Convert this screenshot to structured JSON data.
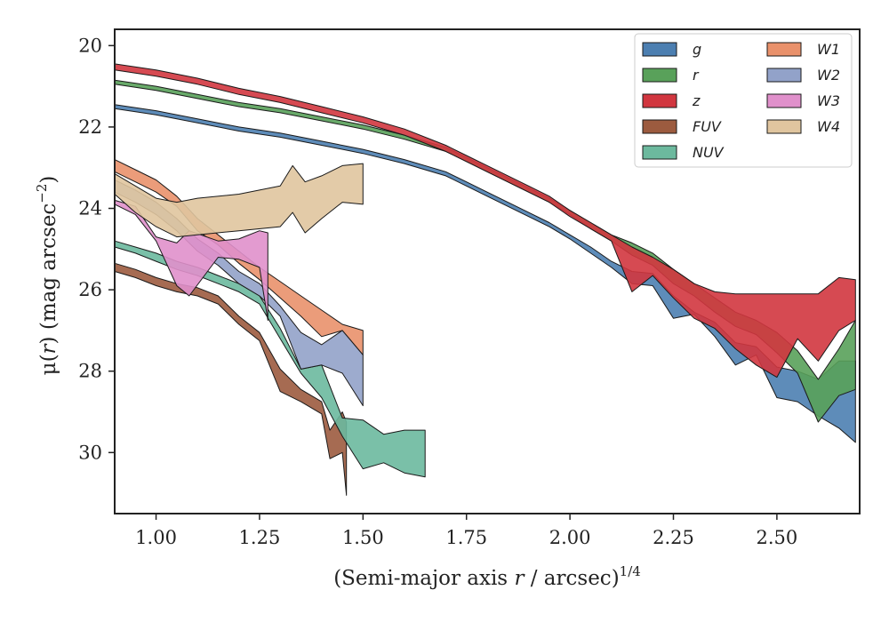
{
  "chart_data": {
    "type": "area",
    "xlabel_main": "(Semi-major axis ",
    "xlabel_var": "r",
    "xlabel_tail": " / arcsec)",
    "xlabel_exp": "1/4",
    "ylabel_main": "μ(",
    "ylabel_var": "r",
    "ylabel_tail": ") (mag arcsec",
    "ylabel_exp": "−2",
    "ylabel_close": ")",
    "xlim": [
      0.9,
      2.7
    ],
    "ylim": [
      31.5,
      19.6
    ],
    "y_inverted": true,
    "xticks": [
      1.0,
      1.25,
      1.5,
      1.75,
      2.0,
      2.25,
      2.5
    ],
    "xtick_labels": [
      "1.00",
      "1.25",
      "1.50",
      "1.75",
      "2.00",
      "2.25",
      "2.50"
    ],
    "yticks": [
      20,
      22,
      24,
      26,
      28,
      30
    ],
    "ytick_labels": [
      "20",
      "22",
      "24",
      "26",
      "28",
      "30"
    ],
    "grid": false,
    "legend_position": "top-right",
    "legend_columns": 2,
    "series": [
      {
        "name": "g",
        "color": "#4c7fb1",
        "x": [
          0.9,
          1.0,
          1.1,
          1.2,
          1.3,
          1.4,
          1.5,
          1.6,
          1.7,
          1.75,
          1.8,
          1.9,
          1.95,
          2.0,
          2.05,
          2.1,
          2.15,
          2.2,
          2.25,
          2.3,
          2.35,
          2.4,
          2.45,
          2.5,
          2.55,
          2.6,
          2.65,
          2.69
        ],
        "top": [
          21.45,
          21.6,
          21.8,
          22.0,
          22.15,
          22.35,
          22.55,
          22.8,
          23.1,
          23.35,
          23.6,
          24.1,
          24.35,
          24.65,
          24.95,
          25.3,
          25.55,
          25.6,
          26.15,
          26.55,
          26.8,
          27.3,
          27.4,
          27.9,
          28.0,
          28.2,
          27.75,
          27.75
        ],
        "bottom": [
          21.55,
          21.7,
          21.9,
          22.1,
          22.25,
          22.45,
          22.65,
          22.9,
          23.2,
          23.45,
          23.7,
          24.2,
          24.45,
          24.75,
          25.1,
          25.45,
          25.85,
          25.9,
          26.7,
          26.6,
          27.15,
          27.85,
          27.6,
          28.65,
          28.75,
          29.1,
          29.4,
          29.75
        ]
      },
      {
        "name": "r",
        "color": "#59a15a",
        "x": [
          0.9,
          1.0,
          1.1,
          1.2,
          1.3,
          1.4,
          1.5,
          1.6,
          1.7,
          1.75,
          1.8,
          1.9,
          1.95,
          2.0,
          2.05,
          2.1,
          2.15,
          2.2,
          2.25,
          2.3,
          2.35,
          2.4,
          2.45,
          2.5,
          2.55,
          2.6,
          2.65,
          2.69
        ],
        "top": [
          20.85,
          21.0,
          21.2,
          21.4,
          21.55,
          21.75,
          21.95,
          22.2,
          22.5,
          22.75,
          23.0,
          23.5,
          23.75,
          24.05,
          24.35,
          24.65,
          24.85,
          25.1,
          25.5,
          25.85,
          26.2,
          26.55,
          26.75,
          27.05,
          27.5,
          28.2,
          27.45,
          26.75
        ],
        "bottom": [
          20.95,
          21.1,
          21.3,
          21.5,
          21.65,
          21.85,
          22.05,
          22.3,
          22.6,
          22.85,
          23.1,
          23.6,
          23.85,
          24.15,
          24.5,
          24.8,
          25.15,
          25.4,
          25.85,
          26.15,
          26.55,
          26.9,
          27.1,
          27.55,
          28.05,
          29.25,
          28.6,
          28.45
        ]
      },
      {
        "name": "z",
        "color": "#d1363f",
        "x": [
          0.9,
          1.0,
          1.1,
          1.2,
          1.3,
          1.4,
          1.5,
          1.6,
          1.7,
          1.75,
          1.8,
          1.9,
          1.95,
          2.0,
          2.05,
          2.1,
          2.15,
          2.2,
          2.25,
          2.3,
          2.35,
          2.4,
          2.45,
          2.5,
          2.55,
          2.6,
          2.65,
          2.69
        ],
        "top": [
          20.45,
          20.6,
          20.8,
          21.05,
          21.25,
          21.5,
          21.75,
          22.05,
          22.45,
          22.7,
          22.95,
          23.45,
          23.7,
          24.05,
          24.35,
          24.65,
          24.95,
          25.2,
          25.5,
          25.85,
          26.05,
          26.1,
          26.1,
          26.1,
          26.1,
          26.1,
          25.7,
          25.75
        ],
        "bottom": [
          20.6,
          20.75,
          20.95,
          21.2,
          21.4,
          21.65,
          21.9,
          22.2,
          22.6,
          22.85,
          23.1,
          23.6,
          23.85,
          24.2,
          24.5,
          24.8,
          26.05,
          25.65,
          26.2,
          26.7,
          26.95,
          27.45,
          27.85,
          28.15,
          27.2,
          27.75,
          27.0,
          26.75
        ]
      },
      {
        "name": "FUV",
        "color": "#9c5b3f",
        "x": [
          0.9,
          0.95,
          1.0,
          1.05,
          1.1,
          1.15,
          1.2,
          1.25,
          1.3,
          1.35,
          1.4,
          1.42,
          1.45,
          1.46
        ],
        "top": [
          25.35,
          25.5,
          25.7,
          25.85,
          25.95,
          26.15,
          26.65,
          27.05,
          27.95,
          28.45,
          28.75,
          29.45,
          29.0,
          29.25
        ],
        "bottom": [
          25.55,
          25.7,
          25.9,
          26.05,
          26.15,
          26.35,
          26.85,
          27.25,
          28.5,
          28.75,
          29.05,
          30.15,
          30.0,
          31.05
        ]
      },
      {
        "name": "NUV",
        "color": "#6cb99e",
        "x": [
          0.9,
          0.95,
          1.0,
          1.05,
          1.1,
          1.15,
          1.2,
          1.25,
          1.3,
          1.35,
          1.4,
          1.45,
          1.5,
          1.55,
          1.6,
          1.65
        ],
        "top": [
          24.8,
          24.95,
          25.1,
          25.3,
          25.45,
          25.65,
          25.85,
          26.15,
          26.95,
          27.95,
          27.85,
          29.15,
          29.2,
          29.55,
          29.45,
          29.45
        ],
        "bottom": [
          24.95,
          25.1,
          25.3,
          25.5,
          25.65,
          25.85,
          26.05,
          26.35,
          27.2,
          28.05,
          28.65,
          29.6,
          30.4,
          30.25,
          30.5,
          30.6
        ]
      },
      {
        "name": "W1",
        "color": "#e9916b",
        "x": [
          0.9,
          0.95,
          1.0,
          1.05,
          1.1,
          1.15,
          1.2,
          1.25,
          1.3,
          1.35,
          1.4,
          1.45,
          1.5
        ],
        "top": [
          22.8,
          23.05,
          23.3,
          23.7,
          24.25,
          24.65,
          25.05,
          25.45,
          25.8,
          26.15,
          26.5,
          26.85,
          27.0
        ],
        "bottom": [
          23.1,
          23.35,
          23.6,
          23.95,
          24.55,
          24.9,
          25.35,
          25.75,
          26.2,
          26.65,
          27.15,
          27.0,
          27.6
        ]
      },
      {
        "name": "W2",
        "color": "#92a2c9",
        "x": [
          0.9,
          0.95,
          1.0,
          1.05,
          1.1,
          1.15,
          1.2,
          1.25,
          1.3,
          1.35,
          1.4,
          1.45,
          1.5
        ],
        "top": [
          23.3,
          23.55,
          23.85,
          24.25,
          24.75,
          25.1,
          25.55,
          25.85,
          26.4,
          27.05,
          27.35,
          27.0,
          27.6
        ],
        "bottom": [
          23.6,
          23.85,
          24.15,
          24.55,
          25.05,
          25.4,
          25.85,
          26.15,
          26.65,
          27.95,
          27.85,
          28.05,
          28.85
        ]
      },
      {
        "name": "W3",
        "color": "#e090cb",
        "x": [
          0.9,
          0.95,
          1.0,
          1.05,
          1.08,
          1.15,
          1.2,
          1.25,
          1.27
        ],
        "top": [
          23.8,
          23.95,
          24.7,
          24.85,
          24.55,
          24.8,
          24.75,
          24.55,
          24.6
        ],
        "bottom": [
          23.9,
          24.15,
          24.8,
          25.9,
          26.15,
          25.2,
          25.25,
          25.45,
          26.75
        ]
      },
      {
        "name": "W4",
        "color": "#e0c59f",
        "x": [
          0.9,
          0.95,
          1.0,
          1.05,
          1.1,
          1.2,
          1.3,
          1.33,
          1.36,
          1.4,
          1.45,
          1.5
        ],
        "top": [
          23.15,
          23.45,
          23.75,
          23.85,
          23.75,
          23.65,
          23.45,
          22.95,
          23.35,
          23.2,
          22.95,
          22.9
        ],
        "bottom": [
          23.65,
          24.1,
          24.45,
          24.7,
          24.65,
          24.55,
          24.45,
          24.1,
          24.6,
          24.25,
          23.85,
          23.9
        ]
      }
    ]
  }
}
